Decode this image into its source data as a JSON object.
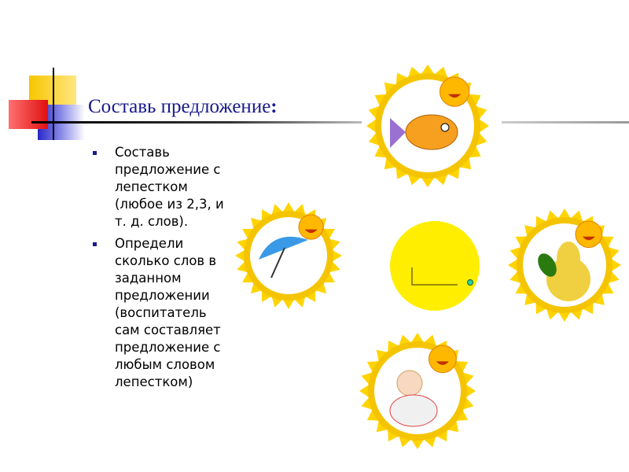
{
  "slide": {
    "title": "Составь предложение",
    "title_colon": ":",
    "bullets": [
      "Составь предложение с лепестком (любое из 2,3, и т. д. слов).",
      "Определи сколько слов в заданном предложении (воспитатель сам составляет предложение с любым словом лепестком)"
    ]
  },
  "colors": {
    "title": "#1a1a8c",
    "sun": "#ffe600",
    "ring": "#f5c400",
    "center_circle": "#ffee00"
  },
  "petals": [
    {
      "picture": "fish-icon"
    },
    {
      "picture": "umbrella-icon"
    },
    {
      "picture": "pear-icon"
    },
    {
      "picture": "doll-icon"
    }
  ]
}
